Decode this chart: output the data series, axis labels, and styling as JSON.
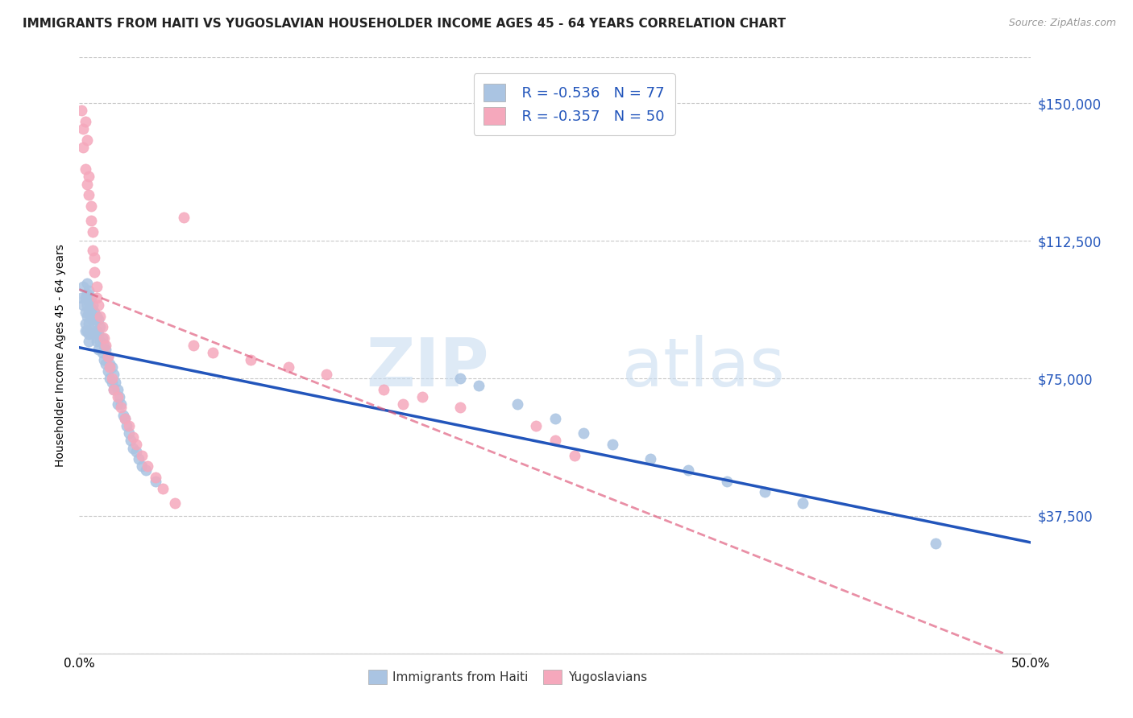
{
  "title": "IMMIGRANTS FROM HAITI VS YUGOSLAVIAN HOUSEHOLDER INCOME AGES 45 - 64 YEARS CORRELATION CHART",
  "source": "Source: ZipAtlas.com",
  "ylabel": "Householder Income Ages 45 - 64 years",
  "xlim": [
    0.0,
    0.5
  ],
  "ylim": [
    0,
    162500
  ],
  "yticks": [
    0,
    37500,
    75000,
    112500,
    150000
  ],
  "ytick_labels": [
    "",
    "$37,500",
    "$75,000",
    "$112,500",
    "$150,000"
  ],
  "haiti_color": "#aac4e2",
  "yugo_color": "#f5a8bc",
  "haiti_line_color": "#2255bb",
  "yugo_line_color": "#e06080",
  "haiti_R": -0.536,
  "haiti_N": 77,
  "yugo_R": -0.357,
  "yugo_N": 50,
  "haiti_scatter_x": [
    0.001,
    0.002,
    0.002,
    0.003,
    0.003,
    0.003,
    0.003,
    0.004,
    0.004,
    0.004,
    0.004,
    0.004,
    0.005,
    0.005,
    0.005,
    0.005,
    0.005,
    0.005,
    0.006,
    0.006,
    0.006,
    0.007,
    0.007,
    0.007,
    0.008,
    0.008,
    0.008,
    0.009,
    0.009,
    0.009,
    0.01,
    0.01,
    0.01,
    0.011,
    0.011,
    0.012,
    0.012,
    0.013,
    0.013,
    0.014,
    0.014,
    0.015,
    0.015,
    0.016,
    0.016,
    0.017,
    0.017,
    0.018,
    0.018,
    0.019,
    0.02,
    0.02,
    0.021,
    0.022,
    0.023,
    0.024,
    0.025,
    0.026,
    0.027,
    0.028,
    0.03,
    0.031,
    0.033,
    0.035,
    0.04,
    0.2,
    0.21,
    0.23,
    0.25,
    0.265,
    0.28,
    0.3,
    0.32,
    0.34,
    0.36,
    0.38,
    0.45
  ],
  "haiti_scatter_y": [
    97000,
    95000,
    100000,
    97000,
    93000,
    90000,
    88000,
    101000,
    98000,
    95000,
    92000,
    88000,
    99000,
    96000,
    93000,
    90000,
    87000,
    85000,
    97000,
    94000,
    92000,
    95000,
    91000,
    87000,
    93000,
    90000,
    87000,
    92000,
    88000,
    85000,
    91000,
    87000,
    83000,
    89000,
    85000,
    86000,
    82000,
    84000,
    80000,
    83000,
    79000,
    81000,
    77000,
    79000,
    75000,
    78000,
    74000,
    76000,
    72000,
    74000,
    72000,
    68000,
    70000,
    68000,
    65000,
    64000,
    62000,
    60000,
    58000,
    56000,
    55000,
    53000,
    51000,
    50000,
    47000,
    75000,
    73000,
    68000,
    64000,
    60000,
    57000,
    53000,
    50000,
    47000,
    44000,
    41000,
    30000
  ],
  "yugo_scatter_x": [
    0.001,
    0.002,
    0.002,
    0.003,
    0.003,
    0.004,
    0.004,
    0.005,
    0.005,
    0.006,
    0.006,
    0.007,
    0.007,
    0.008,
    0.008,
    0.009,
    0.009,
    0.01,
    0.011,
    0.012,
    0.013,
    0.014,
    0.015,
    0.016,
    0.017,
    0.018,
    0.02,
    0.022,
    0.024,
    0.026,
    0.028,
    0.03,
    0.033,
    0.036,
    0.04,
    0.044,
    0.05,
    0.24,
    0.25,
    0.26,
    0.2,
    0.18,
    0.16,
    0.17,
    0.13,
    0.11,
    0.09,
    0.07,
    0.06,
    0.055
  ],
  "yugo_scatter_y": [
    148000,
    143000,
    138000,
    145000,
    132000,
    140000,
    128000,
    130000,
    125000,
    122000,
    118000,
    115000,
    110000,
    108000,
    104000,
    100000,
    97000,
    95000,
    92000,
    89000,
    86000,
    84000,
    81000,
    78000,
    75000,
    72000,
    70000,
    67000,
    64000,
    62000,
    59000,
    57000,
    54000,
    51000,
    48000,
    45000,
    41000,
    62000,
    58000,
    54000,
    67000,
    70000,
    72000,
    68000,
    76000,
    78000,
    80000,
    82000,
    84000,
    119000
  ],
  "title_fontsize": 11,
  "axis_label_fontsize": 10,
  "tick_fontsize": 11,
  "legend_fontsize": 13,
  "watermark_text": "ZIP",
  "watermark_text2": "atlas",
  "background_color": "#ffffff",
  "grid_color": "#c8c8c8"
}
